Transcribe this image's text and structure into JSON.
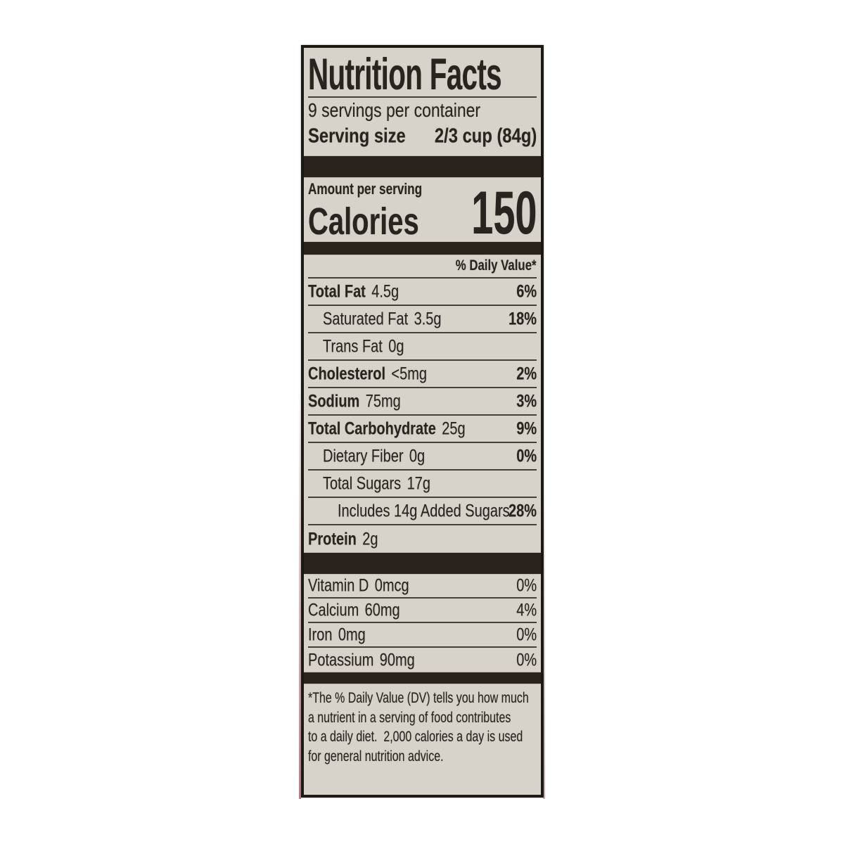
{
  "label": {
    "title": "Nutrition Facts",
    "servings_per_container": "9 servings per container",
    "serving_size_label": "Serving size",
    "serving_size_value": "2/3 cup (84g)",
    "amount_per_serving": "Amount per serving",
    "calories_label": "Calories",
    "calories_value": "150",
    "daily_value_header": "% Daily Value*",
    "nutrients": [
      {
        "name": "Total Fat",
        "amount": "4.5g",
        "dv": "6%"
      },
      {
        "name": "Saturated Fat",
        "amount": "3.5g",
        "dv": "18%"
      },
      {
        "name": "Trans Fat",
        "amount": "0g",
        "dv": ""
      },
      {
        "name": "Cholesterol",
        "amount": "<5mg",
        "dv": "2%"
      },
      {
        "name": "Sodium",
        "amount": "75mg",
        "dv": "3%"
      },
      {
        "name": "Total Carbohydrate",
        "amount": "25g",
        "dv": "9%"
      },
      {
        "name": "Dietary Fiber",
        "amount": "0g",
        "dv": "0%"
      },
      {
        "name": "Total Sugars",
        "amount": "17g",
        "dv": ""
      },
      {
        "name": "Includes 14g Added Sugars",
        "amount": "",
        "dv": "28%"
      },
      {
        "name": "Protein",
        "amount": "2g",
        "dv": ""
      }
    ],
    "micronutrients": [
      {
        "name": "Vitamin D",
        "amount": "0mcg",
        "dv": "0%"
      },
      {
        "name": "Calcium",
        "amount": "60mg",
        "dv": "4%"
      },
      {
        "name": "Iron",
        "amount": "0mg",
        "dv": "0%"
      },
      {
        "name": "Potassium",
        "amount": "90mg",
        "dv": "0%"
      }
    ],
    "footnote_lines": [
      "*The % Daily Value (DV) tells you how much",
      "a nutrient in a serving of food contributes",
      "to a daily diet.  2,000 calories a day is used",
      "for general nutrition advice."
    ],
    "colors": {
      "page_bg": "#ffffff",
      "label_bg": "#d7d3ca",
      "ink": "#2a2421",
      "bar": "#29221d",
      "rule": "#46403a",
      "border": "#1d1916"
    }
  }
}
